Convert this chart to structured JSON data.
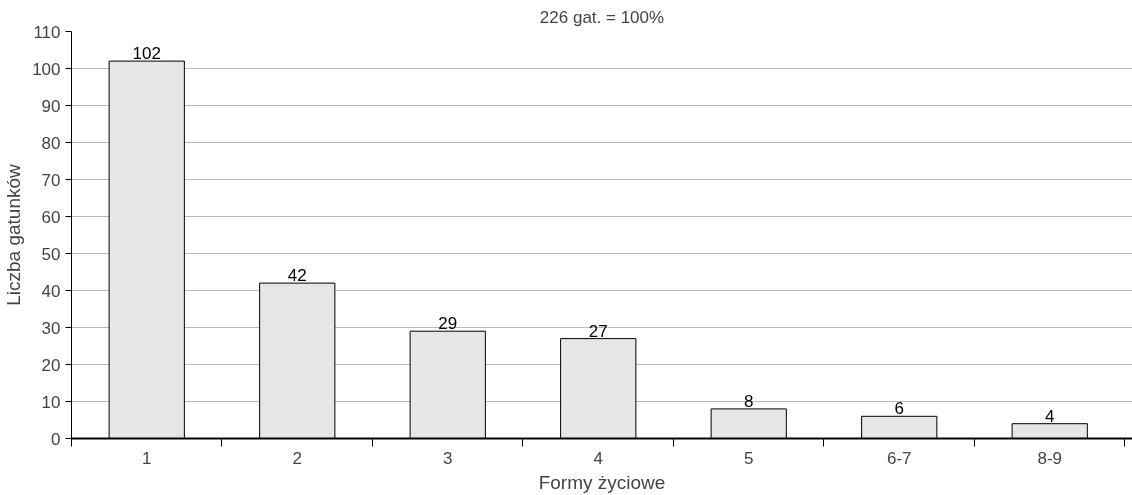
{
  "chart_data": {
    "type": "bar",
    "title": "226 gat. = 100%",
    "xlabel": "Formy życiowe",
    "ylabel": "Liczba gatunków",
    "categories": [
      "1",
      "2",
      "3",
      "4",
      "5",
      "6-7",
      "8-9"
    ],
    "values": [
      102,
      42,
      29,
      27,
      8,
      6,
      4
    ],
    "color": "#e6e6e6",
    "data_labels": true,
    "grid": "y",
    "ylim": [
      0,
      110
    ],
    "yticks": [
      0,
      10,
      20,
      30,
      40,
      50,
      60,
      70,
      80,
      90,
      100,
      110
    ]
  }
}
